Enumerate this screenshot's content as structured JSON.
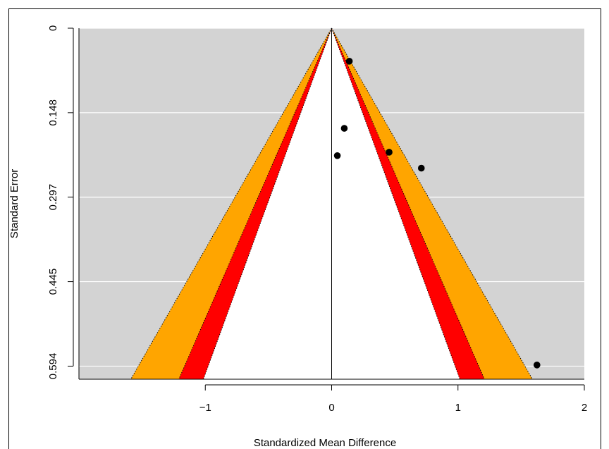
{
  "chart_data": {
    "type": "scatter",
    "title": "",
    "xlabel": "Standardized Mean Difference",
    "ylabel": "Standard Error",
    "xlim": [
      -2.0,
      2.0
    ],
    "ylim": [
      0.0,
      0.617
    ],
    "y_reversed": true,
    "x_ticks": [
      {
        "value": -1,
        "label": "−1"
      },
      {
        "value": 0,
        "label": "0"
      },
      {
        "value": 1,
        "label": "1"
      },
      {
        "value": 2,
        "label": "2"
      }
    ],
    "y_ticks": [
      {
        "value": 0,
        "label": "0"
      },
      {
        "value": 0.1485,
        "label": "0.148"
      },
      {
        "value": 0.297,
        "label": "0.297"
      },
      {
        "value": 0.4455,
        "label": "0.445"
      },
      {
        "value": 0.594,
        "label": "0.594"
      }
    ],
    "contour_levels": [
      {
        "z": 2.576,
        "color": "#ffa500"
      },
      {
        "z": 1.96,
        "color": "#ff0000"
      },
      {
        "z": 1.645,
        "color": "#ffffff"
      }
    ],
    "funnel_center": 0,
    "points": [
      {
        "x": 0.14,
        "y": 0.058
      },
      {
        "x": 0.1,
        "y": 0.176
      },
      {
        "x": 0.045,
        "y": 0.224
      },
      {
        "x": 0.455,
        "y": 0.218
      },
      {
        "x": 0.71,
        "y": 0.246
      },
      {
        "x": 1.625,
        "y": 0.592
      }
    ],
    "grid": true,
    "colors": {
      "plot_background": "#d3d3d3",
      "gridline": "#ffffff",
      "point": "#000000",
      "axis": "#000000"
    }
  }
}
